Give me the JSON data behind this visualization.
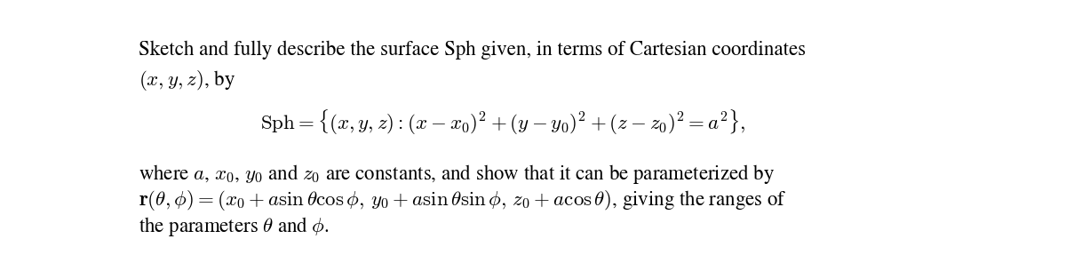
{
  "background_color": "#ffffff",
  "fig_width": 12.0,
  "fig_height": 3.05,
  "dpi": 100,
  "line1": "Sketch and fully describe the surface Sph given, in terms of Cartesian coordinates",
  "line2": "$(x, y, z)$, by",
  "line3": "$\\mathrm{Sph} = \\{(x, y, z) : (x - x_0)^2 + (y - y_0)^2 + (z - z_0)^2 = a^2\\},$",
  "line4": "where $a$, $x_0$, $y_0$ and $z_0$ are constants, and show that it can be parameterized by",
  "line5": "$\\mathbf{r}(\\theta, \\phi) = (x_0 + a\\sin\\theta\\cos\\phi,\\, y_0 + a\\sin\\theta\\sin\\phi,\\, z_0 + a\\cos\\theta)$, giving the ranges of",
  "line6": "the parameters $\\theta$ and $\\phi$.",
  "font_size": 16.5,
  "text_color": "#000000"
}
